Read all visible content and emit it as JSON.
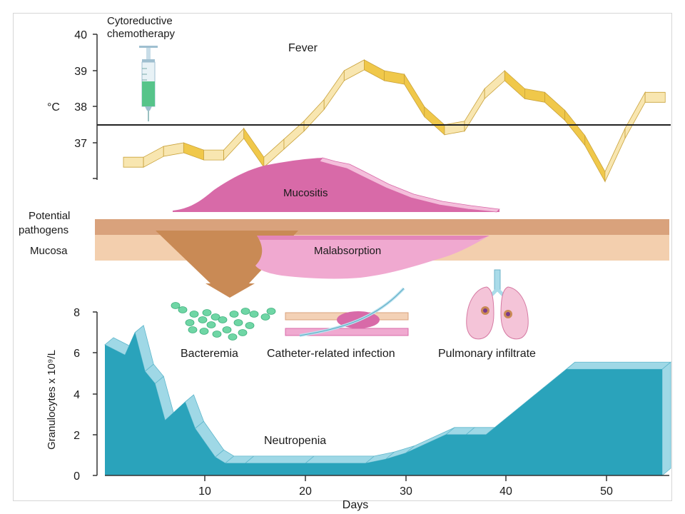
{
  "labels": {
    "chemo": [
      "Cytoreductive",
      "chemotherapy"
    ],
    "fever": "Fever",
    "temp_unit": "°C",
    "mucositis": "Mucositis",
    "potential_pathogens": [
      "Potential",
      "pathogens"
    ],
    "mucosa": "Mucosa",
    "malabsorption": "Malabsorption",
    "bacteremia": "Bacteremia",
    "catheter": "Catheter-related infection",
    "pulmonary": "Pulmonary infiltrate",
    "neutropenia": "Neutropenia",
    "y_axis_gran": "Granulocytes x 10⁹/L",
    "x_axis": "Days"
  },
  "temp_axis": {
    "ticks": [
      "40",
      "39",
      "38",
      "37"
    ]
  },
  "gran_axis": {
    "ticks": [
      "8",
      "6",
      "4",
      "2",
      "0"
    ]
  },
  "days_axis": {
    "ticks": [
      "10",
      "20",
      "30",
      "40",
      "50"
    ]
  },
  "colors": {
    "fever_band": "#f0c84a",
    "fever_light": "#f8e6b0",
    "mucositis": "#d86aa8",
    "mucosa": "#f3cfae",
    "pathogens": "#d9a27c",
    "funnel": "#c98a55",
    "malabsorption": "#f0a9d0",
    "neutropenia": "#2aa3bb",
    "neutropenia_light": "#9fd8e6",
    "bacteria": "#6fd6a5"
  },
  "chart_data": [
    {
      "type": "line",
      "title": "Fever",
      "ylabel": "°C",
      "ylim": [
        36,
        40
      ],
      "threshold": 37.5,
      "x": [
        0,
        2,
        4,
        6,
        8,
        10,
        12,
        14,
        16,
        18,
        20,
        22,
        24,
        26,
        28,
        30,
        32,
        34,
        36,
        38,
        40,
        42,
        44,
        46,
        48,
        50,
        52,
        54
      ],
      "values": [
        36.6,
        36.6,
        36.9,
        37.0,
        36.8,
        36.8,
        37.4,
        36.6,
        37.1,
        37.6,
        38.2,
        39.0,
        39.3,
        39.0,
        38.9,
        38.0,
        37.5,
        37.6,
        38.5,
        39.0,
        38.5,
        38.4,
        37.9,
        37.2,
        36.2,
        37.4,
        38.4,
        38.4
      ]
    },
    {
      "type": "area",
      "title": "Neutropenia",
      "xlabel": "Days",
      "ylabel": "Granulocytes x 10⁹/L",
      "ylim": [
        0,
        8
      ],
      "x": [
        0,
        2,
        3,
        4,
        5,
        6,
        8,
        9,
        11,
        12,
        14,
        20,
        26,
        28,
        30,
        34,
        36,
        38,
        42,
        46,
        56
      ],
      "values": [
        6.4,
        5.9,
        7.0,
        5.1,
        4.5,
        2.7,
        3.6,
        2.3,
        0.9,
        0.6,
        0.6,
        0.6,
        0.6,
        0.8,
        1.1,
        2.0,
        2.0,
        2.0,
        3.6,
        5.2,
        5.2
      ]
    }
  ]
}
